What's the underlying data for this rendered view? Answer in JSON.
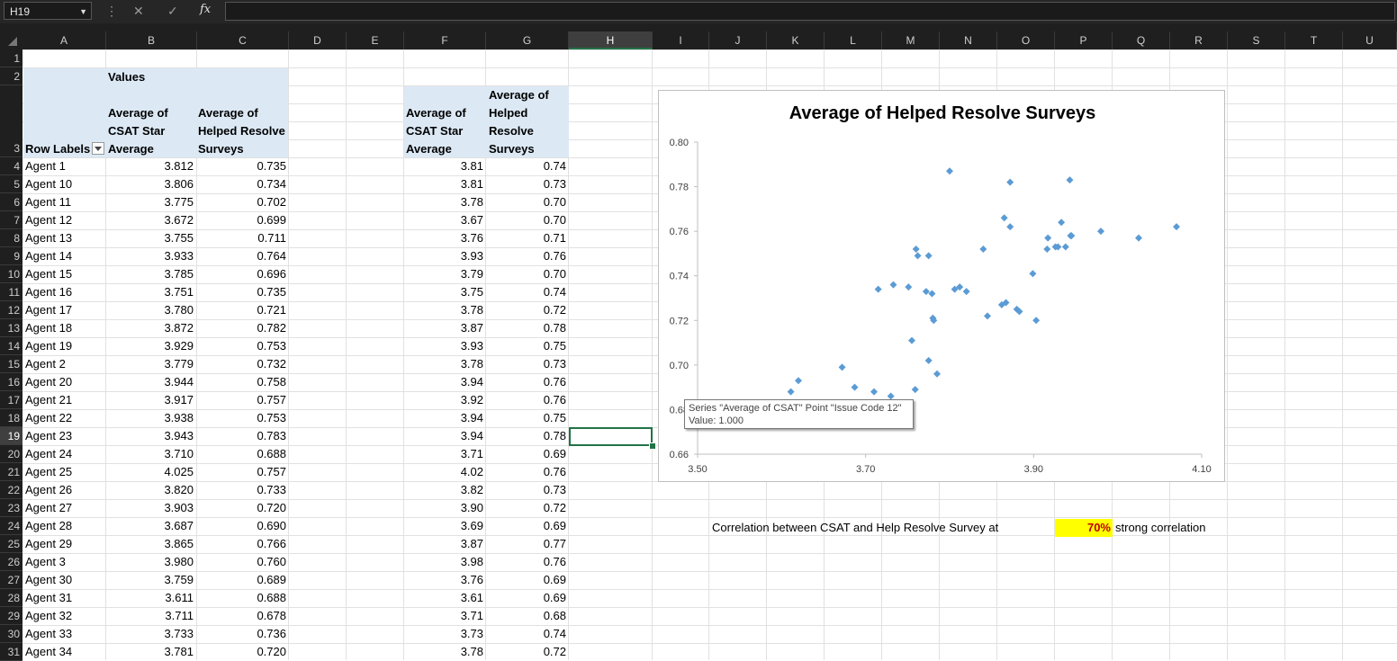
{
  "formula_bar": {
    "name_box": "H19",
    "fx": "fx",
    "formula": ""
  },
  "columns": [
    "A",
    "B",
    "C",
    "D",
    "E",
    "F",
    "G",
    "H",
    "I",
    "J",
    "K",
    "L",
    "M",
    "N",
    "O",
    "P",
    "Q",
    "R",
    "S",
    "T",
    "U"
  ],
  "selected_column": "H",
  "selected_row": "19",
  "pivot": {
    "values_label": "Values",
    "row_labels": "Row Labels",
    "header_b": "Average of\nCSAT Star\nAverage",
    "header_c": "Average of\nHelped Resolve\nSurveys",
    "rows": [
      [
        "Agent 1",
        "3.812",
        "0.735"
      ],
      [
        "Agent 10",
        "3.806",
        "0.734"
      ],
      [
        "Agent 11",
        "3.775",
        "0.702"
      ],
      [
        "Agent 12",
        "3.672",
        "0.699"
      ],
      [
        "Agent 13",
        "3.755",
        "0.711"
      ],
      [
        "Agent 14",
        "3.933",
        "0.764"
      ],
      [
        "Agent 15",
        "3.785",
        "0.696"
      ],
      [
        "Agent 16",
        "3.751",
        "0.735"
      ],
      [
        "Agent 17",
        "3.780",
        "0.721"
      ],
      [
        "Agent 18",
        "3.872",
        "0.782"
      ],
      [
        "Agent 19",
        "3.929",
        "0.753"
      ],
      [
        "Agent 2",
        "3.779",
        "0.732"
      ],
      [
        "Agent 20",
        "3.944",
        "0.758"
      ],
      [
        "Agent 21",
        "3.917",
        "0.757"
      ],
      [
        "Agent 22",
        "3.938",
        "0.753"
      ],
      [
        "Agent 23",
        "3.943",
        "0.783"
      ],
      [
        "Agent 24",
        "3.710",
        "0.688"
      ],
      [
        "Agent 25",
        "4.025",
        "0.757"
      ],
      [
        "Agent 26",
        "3.820",
        "0.733"
      ],
      [
        "Agent 27",
        "3.903",
        "0.720"
      ],
      [
        "Agent 28",
        "3.687",
        "0.690"
      ],
      [
        "Agent 29",
        "3.865",
        "0.766"
      ],
      [
        "Agent 3",
        "3.980",
        "0.760"
      ],
      [
        "Agent 30",
        "3.759",
        "0.689"
      ],
      [
        "Agent 31",
        "3.611",
        "0.688"
      ],
      [
        "Agent 32",
        "3.711",
        "0.678"
      ],
      [
        "Agent 33",
        "3.733",
        "0.736"
      ],
      [
        "Agent 34",
        "3.781",
        "0.720"
      ]
    ]
  },
  "table2": {
    "header_f": "Average of\nCSAT Star\nAverage",
    "header_g": "Average of\nHelped\nResolve\nSurveys",
    "rows": [
      [
        "3.81",
        "0.74"
      ],
      [
        "3.81",
        "0.73"
      ],
      [
        "3.78",
        "0.70"
      ],
      [
        "3.67",
        "0.70"
      ],
      [
        "3.76",
        "0.71"
      ],
      [
        "3.93",
        "0.76"
      ],
      [
        "3.79",
        "0.70"
      ],
      [
        "3.75",
        "0.74"
      ],
      [
        "3.78",
        "0.72"
      ],
      [
        "3.87",
        "0.78"
      ],
      [
        "3.93",
        "0.75"
      ],
      [
        "3.78",
        "0.73"
      ],
      [
        "3.94",
        "0.76"
      ],
      [
        "3.92",
        "0.76"
      ],
      [
        "3.94",
        "0.75"
      ],
      [
        "3.94",
        "0.78"
      ],
      [
        "3.71",
        "0.69"
      ],
      [
        "4.02",
        "0.76"
      ],
      [
        "3.82",
        "0.73"
      ],
      [
        "3.90",
        "0.72"
      ],
      [
        "3.69",
        "0.69"
      ],
      [
        "3.87",
        "0.77"
      ],
      [
        "3.98",
        "0.76"
      ],
      [
        "3.76",
        "0.69"
      ],
      [
        "3.61",
        "0.69"
      ],
      [
        "3.71",
        "0.68"
      ],
      [
        "3.73",
        "0.74"
      ],
      [
        "3.78",
        "0.72"
      ]
    ]
  },
  "chart_data": {
    "type": "scatter",
    "title": "Average of Helped Resolve Surveys",
    "xlim": [
      3.5,
      4.1
    ],
    "ylim": [
      0.66,
      0.8
    ],
    "x_ticks": [
      "3.50",
      "3.70",
      "3.90",
      "4.10"
    ],
    "y_ticks": [
      "0.66",
      "0.68",
      "0.70",
      "0.72",
      "0.74",
      "0.76",
      "0.78",
      "0.80"
    ],
    "marker_color": "#5b9bd5",
    "points": [
      [
        3.812,
        0.735
      ],
      [
        3.806,
        0.734
      ],
      [
        3.775,
        0.702
      ],
      [
        3.672,
        0.699
      ],
      [
        3.755,
        0.711
      ],
      [
        3.933,
        0.764
      ],
      [
        3.785,
        0.696
      ],
      [
        3.751,
        0.735
      ],
      [
        3.78,
        0.721
      ],
      [
        3.872,
        0.782
      ],
      [
        3.929,
        0.753
      ],
      [
        3.779,
        0.732
      ],
      [
        3.944,
        0.758
      ],
      [
        3.917,
        0.757
      ],
      [
        3.938,
        0.753
      ],
      [
        3.943,
        0.783
      ],
      [
        3.71,
        0.688
      ],
      [
        4.025,
        0.757
      ],
      [
        3.82,
        0.733
      ],
      [
        3.903,
        0.72
      ],
      [
        3.687,
        0.69
      ],
      [
        3.865,
        0.766
      ],
      [
        3.98,
        0.76
      ],
      [
        3.759,
        0.689
      ],
      [
        3.611,
        0.688
      ],
      [
        3.711,
        0.678
      ],
      [
        3.733,
        0.736
      ],
      [
        3.781,
        0.72
      ],
      [
        3.8,
        0.787
      ],
      [
        3.62,
        0.693
      ],
      [
        3.76,
        0.752
      ],
      [
        3.762,
        0.749
      ],
      [
        3.775,
        0.749
      ],
      [
        3.715,
        0.734
      ],
      [
        3.772,
        0.733
      ],
      [
        3.84,
        0.752
      ],
      [
        3.845,
        0.722
      ],
      [
        3.862,
        0.727
      ],
      [
        3.872,
        0.762
      ],
      [
        3.88,
        0.725
      ],
      [
        3.899,
        0.741
      ],
      [
        3.916,
        0.752
      ],
      [
        3.926,
        0.753
      ],
      [
        3.945,
        0.758
      ],
      [
        4.07,
        0.762
      ],
      [
        3.867,
        0.728
      ],
      [
        3.883,
        0.724
      ],
      [
        3.73,
        0.686
      ]
    ]
  },
  "tooltip": {
    "line1": "Series \"Average of CSAT\" Point \"Issue Code 12\"",
    "line2": "Value: 1.000"
  },
  "correlation": {
    "label": "Correlation between CSAT and Help Resolve Survey at",
    "value": "70%",
    "desc": "strong correlation"
  },
  "colors": {
    "pivot_header_bg": "#dce9f5",
    "accent": "#217346",
    "highlight": "#ffff00",
    "corr_text": "#c00000"
  }
}
